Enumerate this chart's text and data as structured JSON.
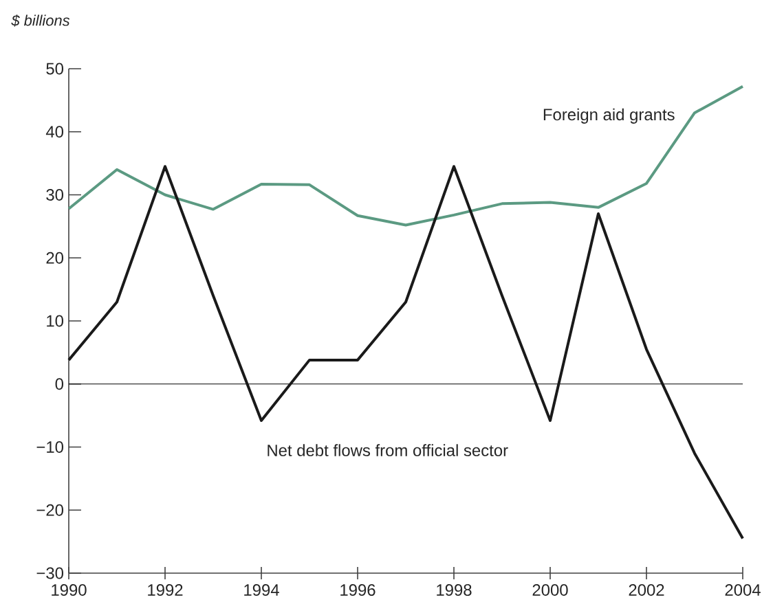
{
  "chart_data": {
    "type": "line",
    "ylabel": "$ billions",
    "x": [
      1990,
      1991,
      1992,
      1993,
      1994,
      1995,
      1996,
      1997,
      1998,
      1999,
      2000,
      2001,
      2002,
      2003,
      2004
    ],
    "series": [
      {
        "name": "Foreign aid grants",
        "color": "#5b9a82",
        "values": [
          27.8,
          34,
          30,
          27.7,
          31.7,
          31.6,
          26.7,
          25.2,
          26.8,
          28.6,
          28.8,
          28,
          31.8,
          43,
          47.2
        ]
      },
      {
        "name": "Net debt flows from official sector",
        "color": "#1a1a1a",
        "values": [
          3.8,
          13,
          34.5,
          14,
          -5.8,
          3.8,
          3.8,
          13,
          34.5,
          14,
          -5.8,
          27,
          5.5,
          -11,
          -24.5
        ]
      }
    ],
    "xlim": [
      1990,
      2004
    ],
    "xticks": [
      1990,
      1992,
      1994,
      1996,
      1998,
      2000,
      2002,
      2004
    ],
    "ylim": [
      -30,
      50
    ],
    "yticks": [
      {
        "value": -30,
        "label": "−30"
      },
      {
        "value": -20,
        "label": "−20"
      },
      {
        "value": -10,
        "label": "−10"
      },
      0,
      10,
      20,
      30,
      40,
      50
    ],
    "ref_lines": [
      {
        "axis": "y",
        "value": 0,
        "color": "#000000"
      }
    ],
    "grid": false,
    "legend": false,
    "marker": "none",
    "line_style": "solid"
  }
}
